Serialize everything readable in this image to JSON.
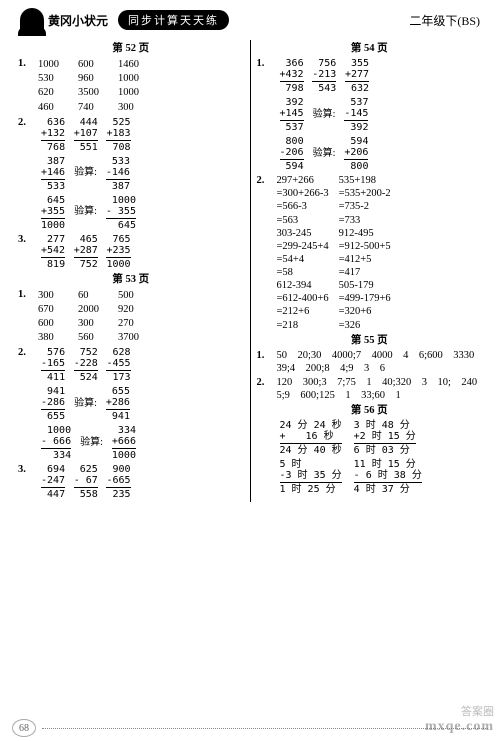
{
  "header": {
    "brand": "黄冈小状元",
    "subtitle": "同步计算天天练",
    "grade": "二年级下(BS)"
  },
  "left": {
    "page52": {
      "title": "第 52 页",
      "q1": [
        [
          "1000",
          "600",
          "1460"
        ],
        [
          "530",
          "960",
          "1000"
        ],
        [
          "620",
          "3500",
          "1000"
        ],
        [
          "460",
          "740",
          "300"
        ]
      ],
      "q2": [
        {
          "a": "636",
          "b": "+132",
          "r": "768"
        },
        {
          "a": "444",
          "b": "+107",
          "r": "551"
        },
        {
          "a": "525",
          "b": "+183",
          "r": "708"
        }
      ],
      "q2b": [
        {
          "a": "387",
          "b": "+146",
          "r": "533",
          "chk": {
            "a": "533",
            "b": "-146",
            "r": "387"
          }
        },
        {
          "a": "645",
          "b": "+355",
          "r": "1000",
          "chk": {
            "a": "1000",
            "b": "- 355",
            "r": "645"
          }
        }
      ],
      "q3": [
        {
          "a": "277",
          "b": "+542",
          "r": "819"
        },
        {
          "a": "465",
          "b": "+287",
          "r": "752"
        },
        {
          "a": "765",
          "b": "+235",
          "r": "1000"
        }
      ]
    },
    "page53": {
      "title": "第 53 页",
      "q1": [
        [
          "300",
          "60",
          "500"
        ],
        [
          "670",
          "2000",
          "920"
        ],
        [
          "600",
          "300",
          "270"
        ],
        [
          "380",
          "560",
          "3700"
        ]
      ],
      "q2": [
        {
          "a": "576",
          "b": "-165",
          "r": "411"
        },
        {
          "a": "752",
          "b": "-228",
          "r": "524"
        },
        {
          "a": "628",
          "b": "-455",
          "r": "173"
        }
      ],
      "q2b": [
        {
          "a": "941",
          "b": "-286",
          "r": "655",
          "chk": {
            "a": "655",
            "b": "+286",
            "r": "941"
          }
        },
        {
          "a": "1000",
          "b": "- 666",
          "r": "334",
          "chk": {
            "a": "334",
            "b": "+666",
            "r": "1000"
          }
        }
      ],
      "q3": [
        {
          "a": "694",
          "b": "-247",
          "r": "447"
        },
        {
          "a": "625",
          "b": "- 67",
          "r": "558"
        },
        {
          "a": "900",
          "b": "-665",
          "r": "235"
        }
      ]
    }
  },
  "right": {
    "page54": {
      "title": "第 54 页",
      "q1": [
        {
          "a": "366",
          "b": "+432",
          "r": "798"
        },
        {
          "a": "756",
          "b": "-213",
          "r": "543"
        },
        {
          "a": "355",
          "b": "+277",
          "r": "632"
        }
      ],
      "q1b": [
        {
          "a": "392",
          "b": "+145",
          "r": "537",
          "chk": {
            "a": "537",
            "b": "-145",
            "r": "392"
          }
        },
        {
          "a": "800",
          "b": "-206",
          "r": "594",
          "chk": {
            "a": "594",
            "b": "+206",
            "r": "800"
          }
        }
      ],
      "q2": {
        "hdr_l": "297+266",
        "hdr_r": "535+198",
        "l": [
          "=300+266-3",
          "=566-3",
          "=563"
        ],
        "r": [
          "=535+200-2",
          "=735-2",
          "=733"
        ],
        "hdr2_l": "303-245",
        "hdr2_r": "912-495",
        "l2": [
          "=299-245+4",
          "=54+4",
          "=58"
        ],
        "r2": [
          "=912-500+5",
          "=412+5",
          "=417"
        ],
        "hdr3_l": "612-394",
        "hdr3_r": "505-179",
        "l3": [
          "=612-400+6",
          "=212+6",
          "=218"
        ],
        "r3": [
          "=499-179+6",
          "=320+6",
          "=326"
        ]
      }
    },
    "page55": {
      "title": "第 55 页",
      "q1": "50　20;30　4000;7　4000　4　6;600　3330　39;4　200;8　4;9　3　6",
      "q2": "120　300;3　7;75　1　40;320　3　10;　240　5;9　600;125　1　33;60　1"
    },
    "page56": {
      "title": "第 56 页",
      "r1": [
        {
          "a": "24 分 24 秒",
          "b": "+　　16 秒",
          "r": "24 分 40 秒"
        },
        {
          "a": "3 时 48 分",
          "b": "+2 时 15 分",
          "r": "6 时 03 分"
        }
      ],
      "r2": [
        {
          "a": "5 时",
          "b": "-3 时 35 分",
          "r": "1 时 25 分"
        },
        {
          "a": "11 时 15 分",
          "b": "- 6 时 38 分",
          "r": "4 时 37 分"
        }
      ]
    }
  },
  "footer": {
    "page": "68"
  },
  "watermark": {
    "l1": "答案圈",
    "l2": "mxqe.com"
  }
}
